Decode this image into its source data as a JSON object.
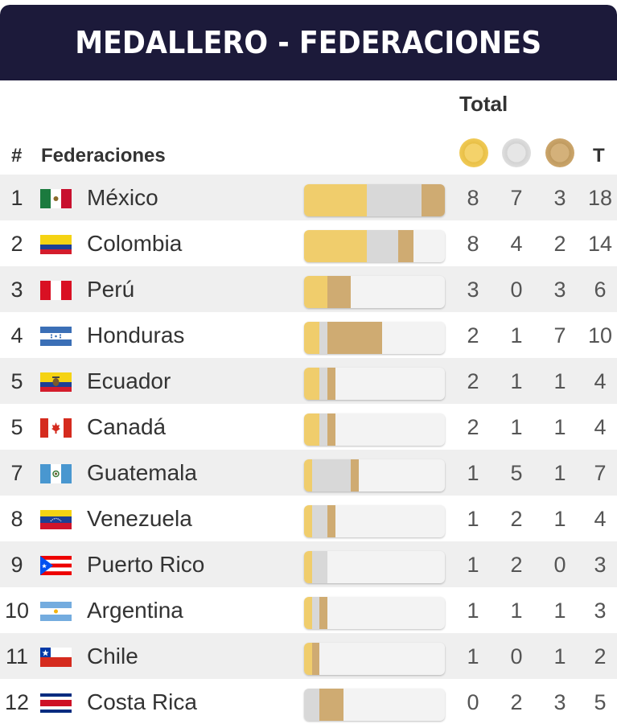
{
  "title": "MEDALLERO - FEDERACIONES",
  "subheader": "Total",
  "columns": {
    "rank": "#",
    "federation": "Federaciones",
    "total": "T"
  },
  "medal_icons": {
    "gold": "gold-medal-icon",
    "silver": "silver-medal-icon",
    "bronze": "bronze-medal-icon"
  },
  "colors": {
    "header_bg": "#1c1a3a",
    "gold": "#f0cd6c",
    "silver": "#d8d8d8",
    "bronze": "#cfab72"
  },
  "bar_scale_max": 18,
  "rows": [
    {
      "rank": "1",
      "name": "México",
      "flag": "mexico-flag-icon",
      "gold": 8,
      "silver": 7,
      "bronze": 3,
      "total": 18
    },
    {
      "rank": "2",
      "name": "Colombia",
      "flag": "colombia-flag-icon",
      "gold": 8,
      "silver": 4,
      "bronze": 2,
      "total": 14
    },
    {
      "rank": "3",
      "name": "Perú",
      "flag": "peru-flag-icon",
      "gold": 3,
      "silver": 0,
      "bronze": 3,
      "total": 6
    },
    {
      "rank": "4",
      "name": "Honduras",
      "flag": "honduras-flag-icon",
      "gold": 2,
      "silver": 1,
      "bronze": 7,
      "total": 10
    },
    {
      "rank": "5",
      "name": "Ecuador",
      "flag": "ecuador-flag-icon",
      "gold": 2,
      "silver": 1,
      "bronze": 1,
      "total": 4
    },
    {
      "rank": "5",
      "name": "Canadá",
      "flag": "canada-flag-icon",
      "gold": 2,
      "silver": 1,
      "bronze": 1,
      "total": 4
    },
    {
      "rank": "7",
      "name": "Guatemala",
      "flag": "guatemala-flag-icon",
      "gold": 1,
      "silver": 5,
      "bronze": 1,
      "total": 7
    },
    {
      "rank": "8",
      "name": "Venezuela",
      "flag": "venezuela-flag-icon",
      "gold": 1,
      "silver": 2,
      "bronze": 1,
      "total": 4
    },
    {
      "rank": "9",
      "name": "Puerto Rico",
      "flag": "puerto-rico-flag-icon",
      "gold": 1,
      "silver": 2,
      "bronze": 0,
      "total": 3
    },
    {
      "rank": "10",
      "name": "Argentina",
      "flag": "argentina-flag-icon",
      "gold": 1,
      "silver": 1,
      "bronze": 1,
      "total": 3
    },
    {
      "rank": "11",
      "name": "Chile",
      "flag": "chile-flag-icon",
      "gold": 1,
      "silver": 0,
      "bronze": 1,
      "total": 2
    },
    {
      "rank": "12",
      "name": "Costa Rica",
      "flag": "costa-rica-flag-icon",
      "gold": 0,
      "silver": 2,
      "bronze": 3,
      "total": 5
    }
  ]
}
